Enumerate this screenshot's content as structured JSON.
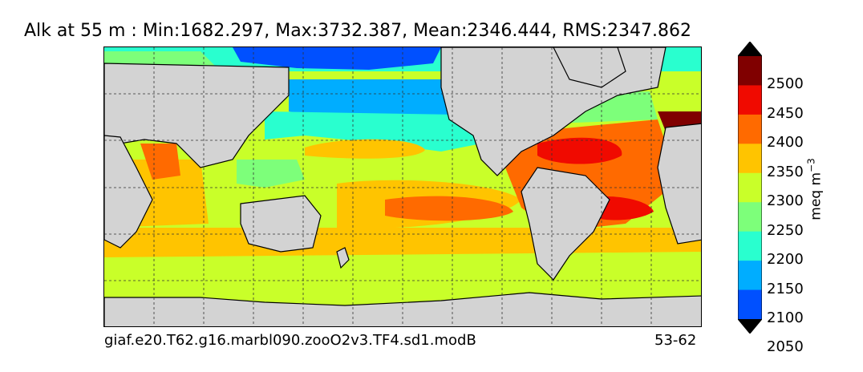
{
  "figure": {
    "title": "Alk at 55 m : Min:1682.297, Max:3732.387, Mean:2346.444, RMS:2347.862",
    "caption_left": "giaf.e20.T62.g16.marbl090.zooO2v3.TF4.sd1.modB",
    "caption_right": "53-62"
  },
  "map": {
    "projection": "equirectangular global, Pacific-centered",
    "land_color": "#d3d3d3",
    "gridlines": "dashed",
    "field": "Alkalinity at 55 m"
  },
  "colorbar": {
    "label_main": "meq m",
    "label_exp": "−3",
    "ticks": [
      "2500",
      "2450",
      "2400",
      "2350",
      "2300",
      "2250",
      "2200",
      "2150",
      "2100",
      "2050"
    ],
    "colors_top_to_bottom": [
      "#800000",
      "#f00a00",
      "#ff6a00",
      "#ffc400",
      "#c9ff29",
      "#7dff7a",
      "#29ffcf",
      "#00adff",
      "#0050ff",
      "#0000f1",
      "#000080"
    ],
    "extend": "both"
  }
}
